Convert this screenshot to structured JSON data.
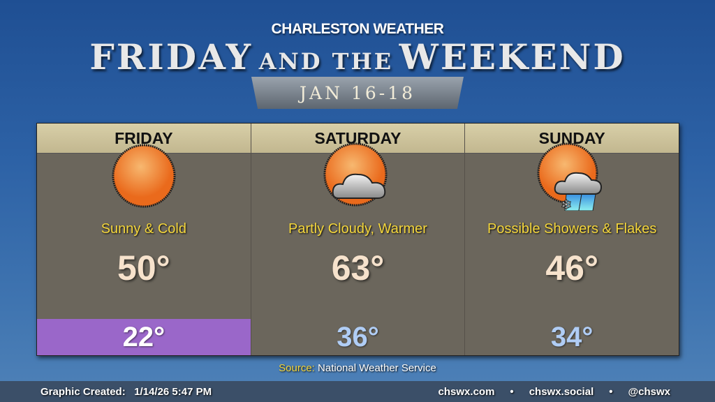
{
  "header": {
    "kicker": "CHARLESTON WEATHER",
    "title_1": "FRIDAY",
    "title_2": "AND THE",
    "title_3": "WEEKEND",
    "dates": "JAN 16-18"
  },
  "days": [
    {
      "name": "FRIDAY",
      "icon": "sun-icon",
      "condition": "Sunny & Cold",
      "high": "50°",
      "low": "22°",
      "low_highlight": true
    },
    {
      "name": "SATURDAY",
      "icon": "partly-cloudy-icon",
      "condition": "Partly Cloudy, Warmer",
      "high": "63°",
      "low": "36°",
      "low_highlight": false
    },
    {
      "name": "SUNDAY",
      "icon": "showers-snow-icon",
      "condition": "Possible Showers & Flakes",
      "high": "46°",
      "low": "34°",
      "low_highlight": false
    }
  ],
  "source": {
    "label": "Source:",
    "value": "National Weather Service"
  },
  "footer": {
    "created_label": "Graphic Created:",
    "created_value": "1/14/26 5:47 PM",
    "links": [
      "chswx.com",
      "•",
      "chswx.social",
      "•",
      "@chswx"
    ]
  },
  "colors": {
    "header": "#c9bf98",
    "panel": "#6b665c",
    "condition": "#f4d63c",
    "low_highlight": "#9a67c9",
    "low": "#b0cdf5"
  }
}
